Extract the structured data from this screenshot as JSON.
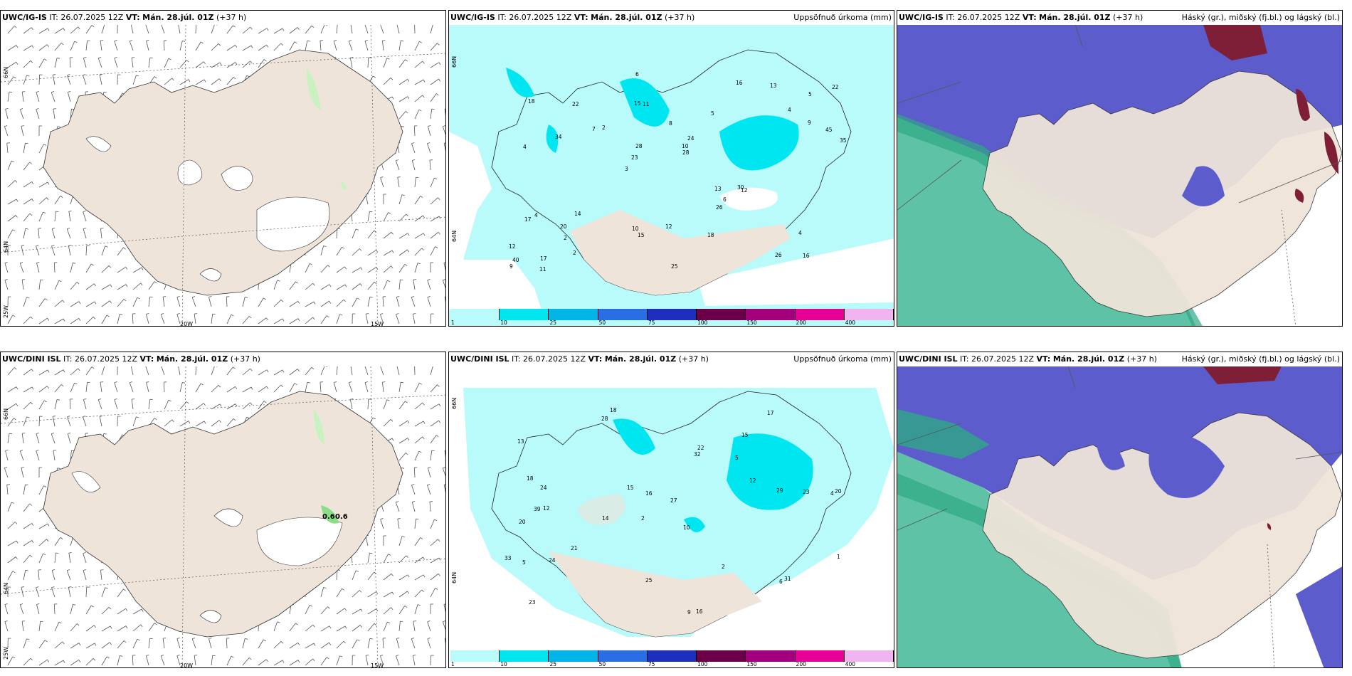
{
  "panels": [
    {
      "model": "UWC/IG-IS",
      "init": "IT: 26.07.2025 12Z",
      "valid_label": "VT:",
      "valid": "Mán. 28.júl. 01Z",
      "lead": "(+37 h)",
      "title": ""
    },
    {
      "model": "UWC/IG-IS",
      "init": "IT: 26.07.2025 12Z",
      "valid_label": "VT:",
      "valid": "Mán. 28.júl. 01Z",
      "lead": "(+37 h)",
      "title": "Uppsöfnuð úrkoma (mm)"
    },
    {
      "model": "UWC/IG-IS",
      "init": "IT: 26.07.2025 12Z",
      "valid_label": "VT:",
      "valid": "Mán. 28.júl. 01Z",
      "lead": "(+37 h)",
      "title": "Háský (gr.), miðský (fj.bl.) og lágský (bl.)"
    },
    {
      "model": "UWC/DINI ISL",
      "init": "IT: 26.07.2025 12Z",
      "valid_label": "VT:",
      "valid": "Mán. 28.júl. 01Z",
      "lead": "(+37 h)",
      "title": ""
    },
    {
      "model": "UWC/DINI ISL",
      "init": "IT: 26.07.2025 12Z",
      "valid_label": "VT:",
      "valid": "Mán. 28.júl. 01Z",
      "lead": "(+37 h)",
      "title": "Uppsöfnuð úrkoma (mm)"
    },
    {
      "model": "UWC/DINI ISL",
      "init": "IT: 26.07.2025 12Z",
      "valid_label": "VT:",
      "valid": "Mán. 28.júl. 01Z",
      "lead": "(+37 h)",
      "title": "Háský (gr.), miðský (fj.bl.) og lágský (bl.)"
    }
  ],
  "axes": {
    "lat66": "66N",
    "lat64": "64N",
    "lon25": "25W",
    "lon20": "20W",
    "lon15": "15W"
  },
  "wind_extra_labels": {
    "value_a": "0.6",
    "value_b": "0.6"
  },
  "precip_scale": {
    "levels": [
      "1",
      "10",
      "25",
      "50",
      "75",
      "100",
      "150",
      "200",
      "400"
    ],
    "colors": [
      "#b9fafa",
      "#00e6f0",
      "#00b4e6",
      "#2a6ee6",
      "#1e2fbe",
      "#6a004a",
      "#a4007e",
      "#e60096",
      "#f0b4f0"
    ]
  },
  "colors": {
    "land": "#efe4d9",
    "precip_light": "#b9fafa",
    "precip_mid": "#00e6f0",
    "cloud_low": "#5c5ccd",
    "cloud_mid": "#5ec2a6",
    "cloud_high": "#7e1f37",
    "moisture_green": "#c8f2c0"
  },
  "precip_numbers_top": [
    "16",
    "4",
    "5",
    "3",
    "5",
    "17",
    "15",
    "8",
    "4",
    "2",
    "12",
    "2",
    "11",
    "24",
    "12",
    "18",
    "6",
    "35",
    "13",
    "9",
    "23",
    "10",
    "28",
    "22",
    "16",
    "14",
    "26",
    "4",
    "30",
    "25",
    "7",
    "34",
    "26",
    "2",
    "45",
    "10",
    "40",
    "15",
    "28",
    "17",
    "4",
    "22",
    "6",
    "18",
    "20",
    "11",
    "9",
    "12",
    "13"
  ],
  "precip_numbers_bottom": [
    "18",
    "15",
    "4",
    "2",
    "10",
    "12",
    "13",
    "5",
    "20",
    "32",
    "27",
    "23",
    "28",
    "14",
    "9",
    "16",
    "25",
    "17",
    "12",
    "21",
    "24",
    "39",
    "20",
    "23",
    "33",
    "18",
    "16",
    "29",
    "31",
    "5",
    "6",
    "22",
    "24",
    "15",
    "2",
    "1"
  ]
}
